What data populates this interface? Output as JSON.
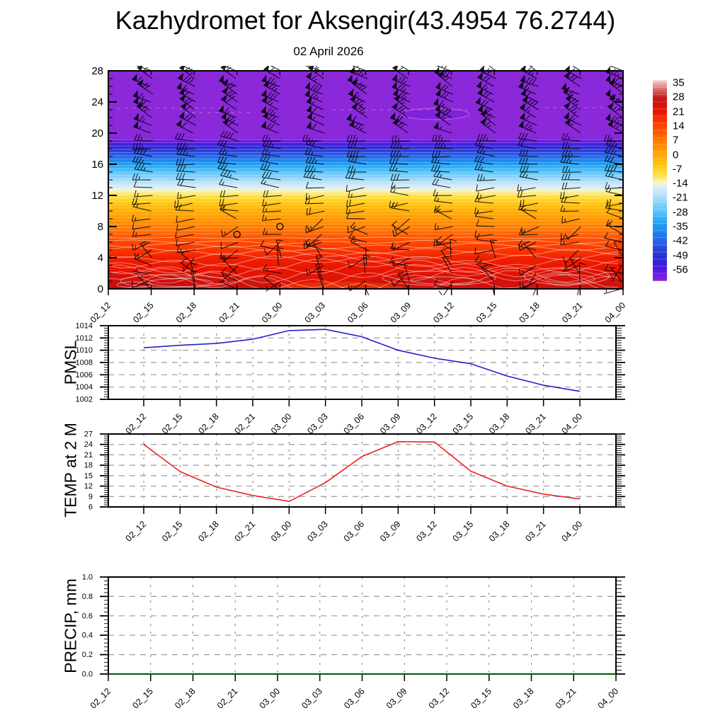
{
  "title": "Kazhydromet for Aksengir(43.4954 76.2744)",
  "subtitle": "02 April 2026",
  "time_labels": [
    "02_12",
    "02_15",
    "02_18",
    "02_21",
    "03_00",
    "03_03",
    "03_06",
    "03_09",
    "03_12",
    "03_15",
    "03_18",
    "03_21",
    "04_00"
  ],
  "chart_data": [
    {
      "id": "upper_air",
      "type": "heatmap",
      "ylabel": "",
      "y_unit": "km",
      "ylim": [
        0,
        28
      ],
      "yticks": [
        "0",
        "4",
        "8",
        "12",
        "16",
        "20",
        "24",
        "28"
      ],
      "height_temp_profile_km_degC": [
        [
          0,
          23.5
        ],
        [
          1,
          23
        ],
        [
          2,
          21.8
        ],
        [
          3,
          20.5
        ],
        [
          4,
          19.5
        ],
        [
          5,
          16.5
        ],
        [
          6,
          13.5
        ],
        [
          7,
          10
        ],
        [
          8,
          6.5
        ],
        [
          9,
          3
        ],
        [
          10,
          -0.5
        ],
        [
          11,
          -5
        ],
        [
          12,
          -10
        ],
        [
          12.7,
          -13.5
        ],
        [
          13.2,
          -16
        ],
        [
          14,
          -21
        ],
        [
          15,
          -27
        ],
        [
          16,
          -33.5
        ],
        [
          17,
          -41
        ],
        [
          18,
          -48
        ],
        [
          18.6,
          -55
        ],
        [
          19.1,
          -59
        ],
        [
          19.5,
          -61
        ],
        [
          28,
          -61
        ]
      ],
      "wind_barbs": {
        "columns": 13,
        "km_step": 1,
        "max_km": 28,
        "description": "mostly westerly barbs, speed increasing with height",
        "calm_circles": [
          {
            "time_index": 3,
            "km": 7
          },
          {
            "time_index": 4,
            "km": 8
          }
        ]
      },
      "colorbar": {
        "tick_labels": [
          "35",
          "28",
          "21",
          "14",
          "7",
          "0",
          "-7",
          "-14",
          "-21",
          "-28",
          "-35",
          "-42",
          "-49",
          "-56"
        ],
        "stops": [
          [
            36.5,
            "#f8d8d8"
          ],
          [
            35,
            "#f0b0b0"
          ],
          [
            33,
            "#e28484"
          ],
          [
            31,
            "#d45858"
          ],
          [
            29,
            "#c73030"
          ],
          [
            28,
            "#c41f1f"
          ],
          [
            26,
            "#cb1410"
          ],
          [
            24,
            "#d81408"
          ],
          [
            21,
            "#ea1400"
          ],
          [
            18,
            "#f62c00"
          ],
          [
            14,
            "#ff4400"
          ],
          [
            10,
            "#ff6000"
          ],
          [
            7,
            "#ff7c00"
          ],
          [
            3,
            "#ff9600"
          ],
          [
            0,
            "#ffaa00"
          ],
          [
            -4,
            "#ffc010"
          ],
          [
            -7,
            "#ffd228"
          ],
          [
            -10,
            "#ffe24c"
          ],
          [
            -12,
            "#f9ef9e"
          ],
          [
            -13.5,
            "#f4f6c6"
          ],
          [
            -15,
            "#dcedf8"
          ],
          [
            -18,
            "#c4e5f9"
          ],
          [
            -21,
            "#a4daf8"
          ],
          [
            -25,
            "#72ccf9"
          ],
          [
            -28,
            "#4cc2fa"
          ],
          [
            -32,
            "#28a8f5"
          ],
          [
            -35,
            "#1c95f0"
          ],
          [
            -39,
            "#2076ef"
          ],
          [
            -42,
            "#2a60ea"
          ],
          [
            -46,
            "#2a41da"
          ],
          [
            -49,
            "#2a2ed4"
          ],
          [
            -53,
            "#3a20dc"
          ],
          [
            -56,
            "#5617e4"
          ],
          [
            -58.5,
            "#7020e0"
          ],
          [
            -61,
            "#8a28da"
          ]
        ]
      }
    },
    {
      "id": "pmsl",
      "type": "line",
      "ylabel": "PMSL",
      "color": "#2222cc",
      "ylim": [
        1002,
        1014
      ],
      "yticks": [
        "1002",
        "1004",
        "1006",
        "1008",
        "1010",
        "1012",
        "1014"
      ],
      "values": [
        1010.4,
        1010.8,
        1011.1,
        1011.8,
        1013.2,
        1013.4,
        1012.2,
        1010.0,
        1008.7,
        1007.8,
        1005.8,
        1004.3,
        1003.3
      ]
    },
    {
      "id": "temp_2m",
      "type": "line",
      "ylabel": "TEMP at 2 M",
      "color": "#ee2222",
      "ylim": [
        6,
        27
      ],
      "yticks": [
        "6",
        "9",
        "12",
        "15",
        "18",
        "21",
        "24",
        "27"
      ],
      "values": [
        24.0,
        16.2,
        11.7,
        9.3,
        7.6,
        13.0,
        20.5,
        24.8,
        24.7,
        16.3,
        12.0,
        9.7,
        8.3
      ]
    },
    {
      "id": "precip",
      "type": "line",
      "ylabel": "PRECIP, mm",
      "color": "#006600",
      "ylim": [
        0.0,
        1.0
      ],
      "yticks": [
        "0.0",
        "0.2",
        "0.4",
        "0.6",
        "0.8",
        "1.0"
      ],
      "values": [
        0,
        0,
        0,
        0,
        0,
        0,
        0,
        0,
        0,
        0,
        0,
        0,
        0
      ]
    }
  ]
}
